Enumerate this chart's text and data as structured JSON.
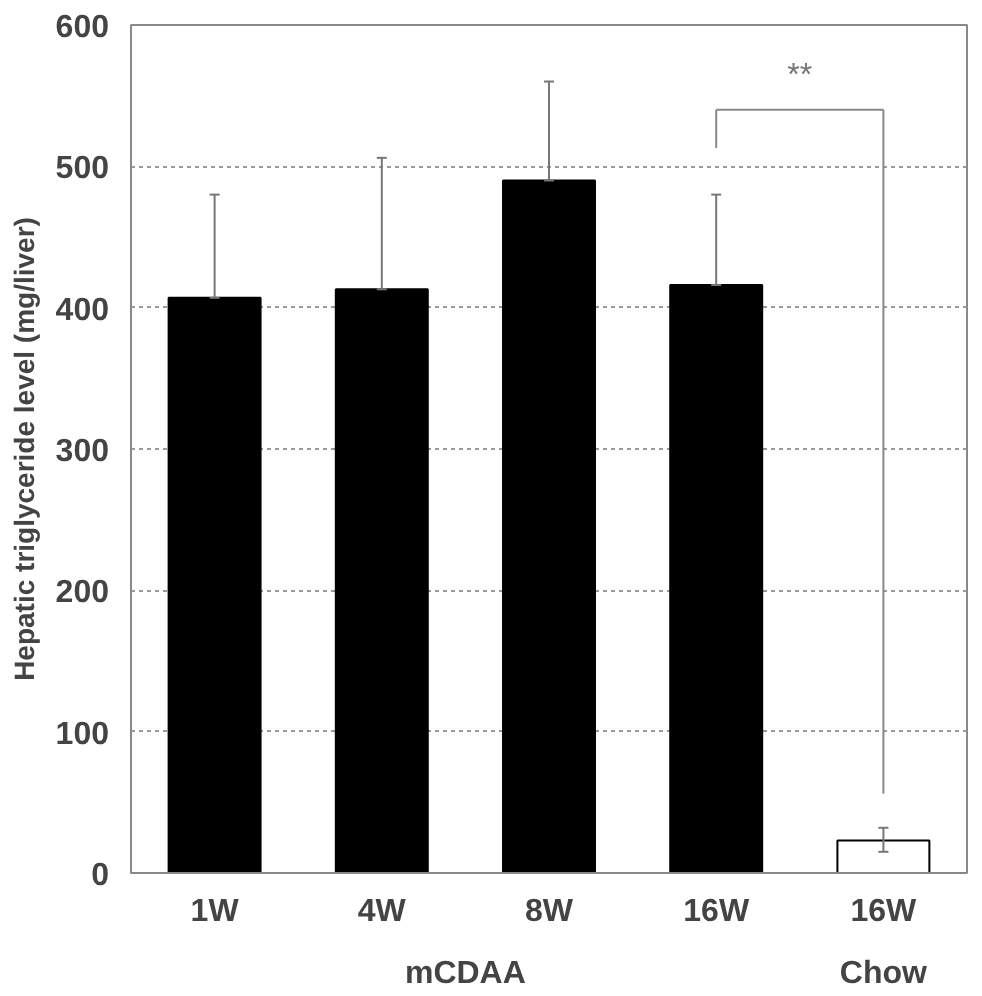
{
  "chart_data": {
    "type": "bar",
    "ylabel": "Hepatic triglyceride level (mg/liver)",
    "categories": [
      "1W",
      "4W",
      "8W",
      "16W",
      "16W"
    ],
    "values": [
      407,
      413,
      490,
      416,
      23
    ],
    "colors": [
      "#000000",
      "#000000",
      "#000000",
      "#000000",
      "#ffffff"
    ],
    "errors": [
      [
        407,
        480
      ],
      [
        413,
        506
      ],
      [
        490,
        560
      ],
      [
        416,
        480
      ],
      [
        15,
        32
      ]
    ],
    "ylim": [
      0,
      600
    ],
    "yticks": [
      0,
      100,
      200,
      300,
      400,
      500,
      600
    ],
    "grid": "y",
    "annotations": [
      "**",
      "mCDAA",
      "Chow"
    ]
  }
}
